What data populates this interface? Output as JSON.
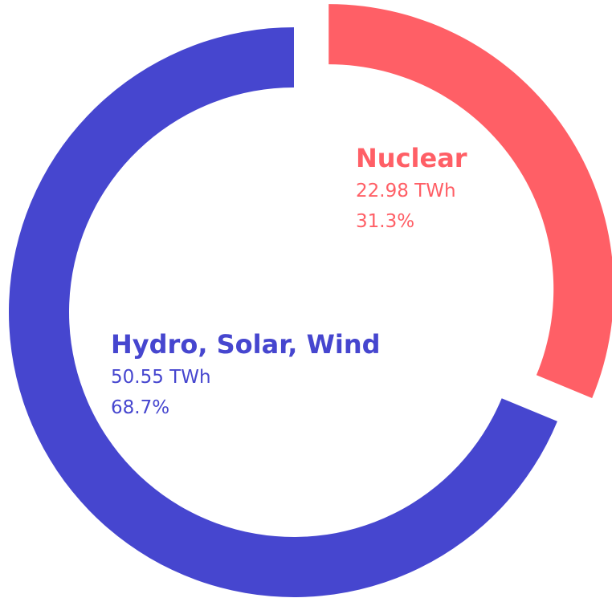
{
  "chart_data": {
    "type": "pie",
    "donut": true,
    "categories": [
      "Nuclear",
      "Hydro, Solar, Wind"
    ],
    "values": [
      22.98,
      50.55
    ],
    "value_labels": [
      "22.98 TWh",
      "50.55 TWh"
    ],
    "percent_labels": [
      "31.3%",
      "68.7%"
    ],
    "colors": [
      "#ff5f66",
      "#4646cf"
    ],
    "exploded": [
      true,
      false
    ]
  }
}
